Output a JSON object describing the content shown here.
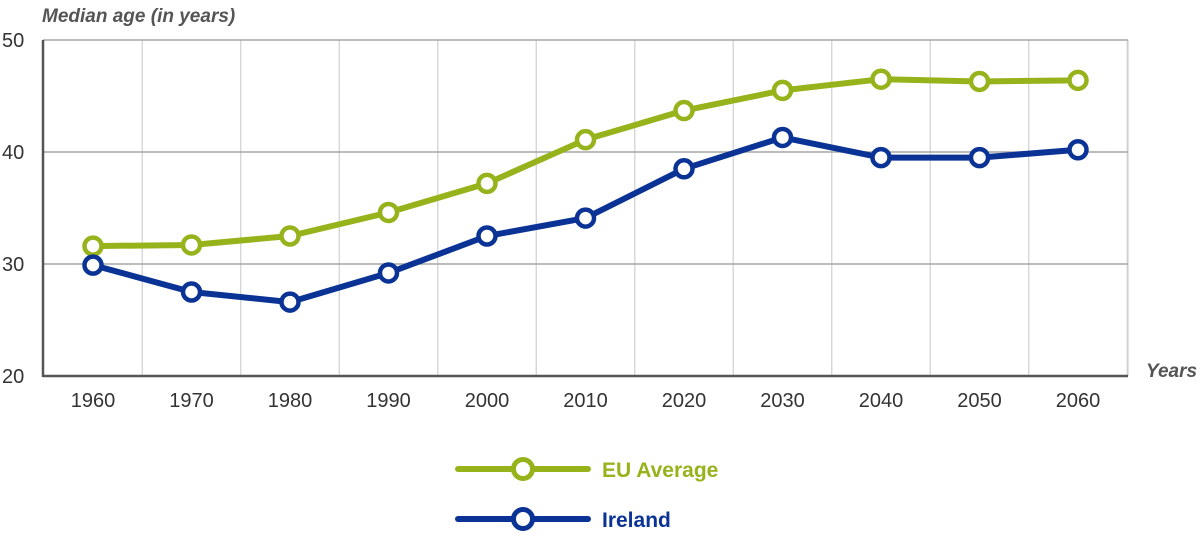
{
  "chart_data": {
    "type": "line",
    "title": "",
    "ylabel": "Median age (in years)",
    "xlabel": "Years",
    "x": [
      1960,
      1970,
      1980,
      1990,
      2000,
      2010,
      2020,
      2030,
      2040,
      2050,
      2060
    ],
    "x_tick_labels": [
      "1960",
      "1970",
      "1980",
      "1990",
      "2000",
      "2010",
      "2020",
      "2030",
      "2040",
      "2050",
      "2060"
    ],
    "ylim": [
      20,
      50
    ],
    "y_ticks": [
      20,
      30,
      40,
      50
    ],
    "y_tick_labels": [
      "20",
      "30",
      "40",
      "50"
    ],
    "grid": true,
    "legend_position": "bottom-center",
    "series": [
      {
        "name": "EU Average",
        "color": "#97b31c",
        "values": [
          31.6,
          31.7,
          32.5,
          34.6,
          37.2,
          41.1,
          43.7,
          45.5,
          46.5,
          46.3,
          46.4
        ]
      },
      {
        "name": "Ireland",
        "color": "#0a3395",
        "values": [
          29.9,
          27.5,
          26.6,
          29.2,
          32.5,
          34.1,
          38.5,
          41.3,
          39.5,
          39.5,
          40.2
        ]
      }
    ]
  }
}
